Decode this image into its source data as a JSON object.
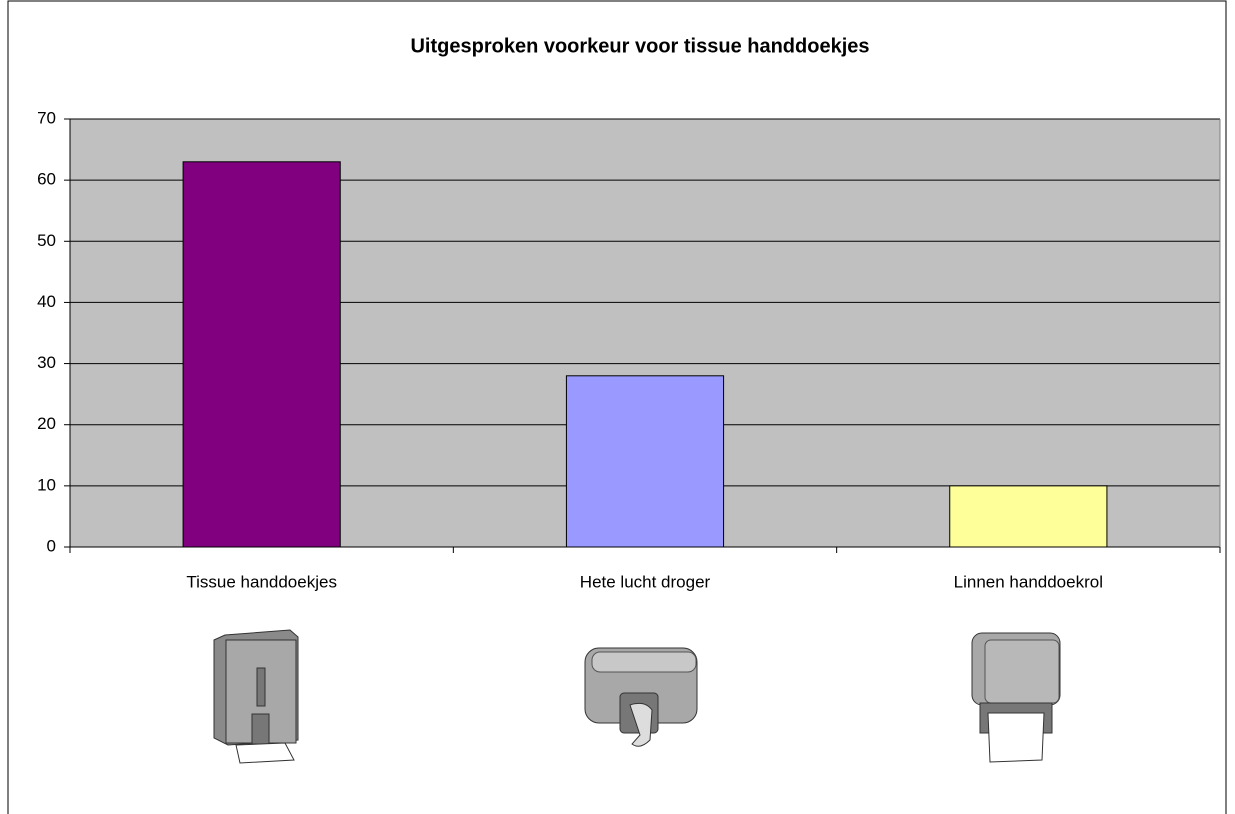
{
  "chart_data": {
    "type": "bar",
    "title": "Uitgesproken voorkeur voor tissue handdoekjes",
    "categories": [
      "Tissue handdoekjes",
      "Hete lucht droger",
      "Linnen handdoekrol"
    ],
    "values": [
      63,
      28,
      10
    ],
    "colors": [
      "#800080",
      "#9999ff",
      "#ffff99"
    ],
    "ylim": [
      0,
      70
    ],
    "yticks": [
      0,
      10,
      20,
      30,
      40,
      50,
      60,
      70
    ],
    "grid": true
  }
}
